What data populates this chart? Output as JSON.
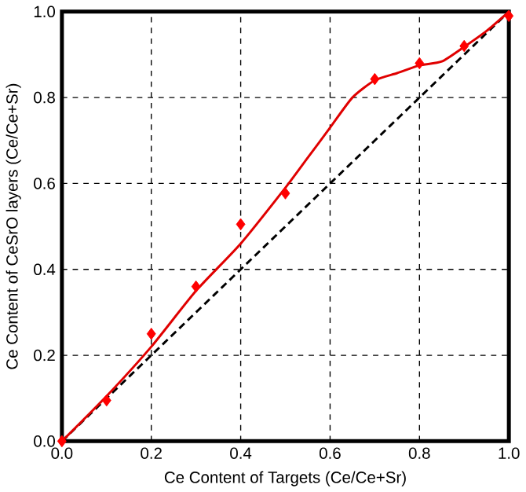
{
  "chart_data": {
    "type": "scatter",
    "xlabel": "Ce Content of Targets (Ce/Ce+Sr)",
    "ylabel": "Ce Content of CeSrO layers (Ce/Ce+Sr)",
    "xlim": [
      0,
      1
    ],
    "ylim": [
      0,
      1
    ],
    "xticks": [
      {
        "value": 0,
        "label": "0.0"
      },
      {
        "value": 0.2,
        "label": "0.2"
      },
      {
        "value": 0.4,
        "label": "0.4"
      },
      {
        "value": 0.6,
        "label": "0.6"
      },
      {
        "value": 0.8,
        "label": "0.8"
      },
      {
        "value": 1,
        "label": "1.0"
      }
    ],
    "yticks": [
      {
        "value": 0,
        "label": "0.0"
      },
      {
        "value": 0.2,
        "label": "0.2"
      },
      {
        "value": 0.4,
        "label": "0.4"
      },
      {
        "value": 0.6,
        "label": "0.6"
      },
      {
        "value": 0.8,
        "label": "0.8"
      },
      {
        "value": 1,
        "label": "1.0"
      }
    ],
    "grid": true,
    "series": [
      {
        "type": "line",
        "color": "#000000",
        "line_style": "dashed",
        "marker": "none",
        "x": [
          0,
          1
        ],
        "values": [
          0,
          1
        ]
      },
      {
        "type": "line",
        "color": "#e00000",
        "line_style": "solid",
        "marker": "none",
        "x": [
          0,
          0.1,
          0.2,
          0.3,
          0.4,
          0.5,
          0.55,
          0.6,
          0.65,
          0.7,
          0.75,
          0.8,
          0.85,
          0.9,
          0.95,
          1
        ],
        "values": [
          0,
          0.105,
          0.22,
          0.35,
          0.46,
          0.59,
          0.66,
          0.73,
          0.8,
          0.84,
          0.857,
          0.875,
          0.884,
          0.918,
          0.955,
          1
        ]
      },
      {
        "color": "#ff0000",
        "marker": "diamond",
        "x": [
          0,
          0.1,
          0.2,
          0.3,
          0.4,
          0.5,
          0.7,
          0.8,
          0.9,
          1
        ],
        "values": [
          0,
          0.095,
          0.25,
          0.36,
          0.505,
          0.577,
          0.843,
          0.88,
          0.92,
          0.99
        ]
      }
    ]
  }
}
